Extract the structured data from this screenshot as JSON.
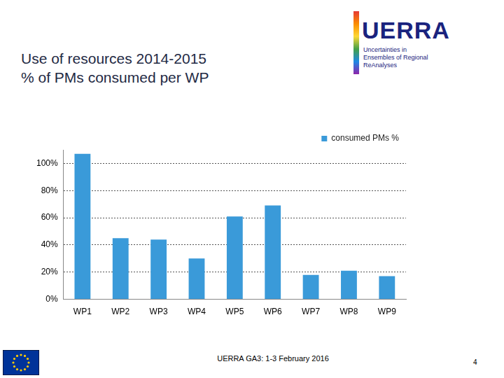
{
  "chart_data": {
    "type": "bar",
    "title": "Use of resources 2014-2015",
    "subtitle": "% of PMs consumed per WP",
    "categories": [
      "WP1",
      "WP2",
      "WP3",
      "WP4",
      "WP5",
      "WP6",
      "WP7",
      "WP8",
      "WP9"
    ],
    "series": [
      {
        "name": "consumed PMs %",
        "color": "#3a9ad9",
        "values": [
          107,
          45,
          44,
          30,
          61,
          69,
          18,
          21,
          17
        ]
      }
    ],
    "ylim": [
      0,
      110
    ],
    "yticks": [
      {
        "value": 0,
        "label": "0%"
      },
      {
        "value": 20,
        "label": "20%"
      },
      {
        "value": 40,
        "label": "40%"
      },
      {
        "value": 60,
        "label": "60%"
      },
      {
        "value": 80,
        "label": "80%"
      },
      {
        "value": 100,
        "label": "100%"
      }
    ],
    "grid": true,
    "legend": "upper right",
    "annotations": [
      "UERRA",
      "Uncertainties in Ensembles of Regional ReAnalyses",
      "UERRA GA3: 1-3 February 2016",
      "4"
    ]
  }
}
